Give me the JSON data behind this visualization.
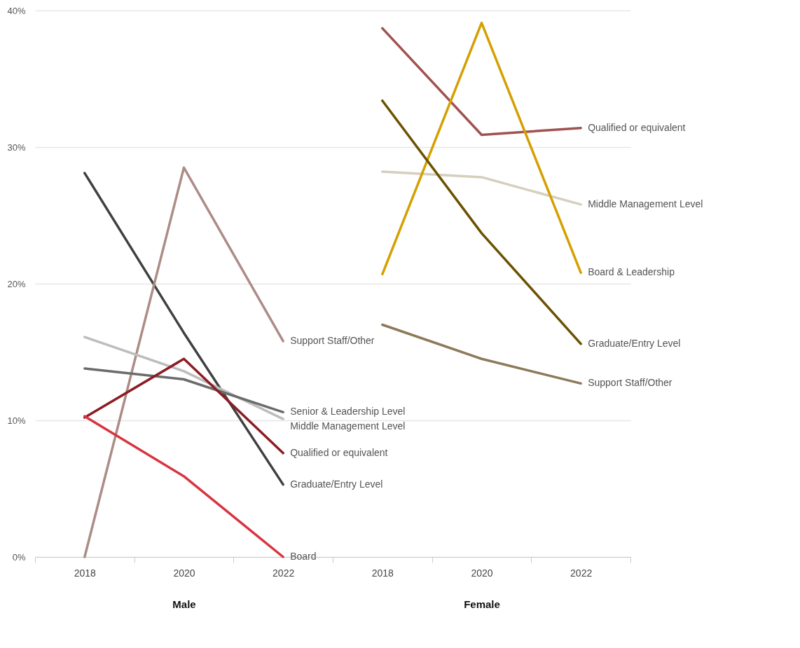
{
  "chart_data": [
    {
      "type": "line",
      "xlabel": "Male",
      "categories": [
        "2018",
        "2020",
        "2022"
      ],
      "ylim": [
        0,
        40
      ],
      "yticks": [
        {
          "value": 0,
          "label": "0%"
        },
        {
          "value": 10,
          "label": "10%"
        },
        {
          "value": 20,
          "label": "20%"
        },
        {
          "value": 30,
          "label": "30%"
        },
        {
          "value": 40,
          "label": "40%"
        }
      ],
      "grid": "y",
      "series": [
        {
          "name": "Graduate/Entry Level",
          "color": "#404040",
          "values": [
            28.1,
            16.4,
            5.3
          ]
        },
        {
          "name": "Support Staff/Other",
          "color": "#ac8c86",
          "values": [
            0,
            28.5,
            15.8
          ]
        },
        {
          "name": "Middle Management Level",
          "color": "#bdbdbd",
          "values": [
            16.1,
            13.6,
            10.1
          ]
        },
        {
          "name": "Senior & Leadership Level",
          "color": "#6b6b6b",
          "values": [
            13.8,
            13.0,
            10.6
          ]
        },
        {
          "name": "Qualified or equivalent",
          "color": "#8b1c24",
          "values": [
            10.2,
            14.5,
            7.6
          ]
        },
        {
          "name": "Board",
          "color": "#d93340",
          "values": [
            10.3,
            5.9,
            0
          ]
        }
      ]
    },
    {
      "type": "line",
      "xlabel": "Female",
      "categories": [
        "2018",
        "2020",
        "2022"
      ],
      "ylim": [
        0,
        40
      ],
      "yticks": [
        0,
        10,
        20,
        30,
        40
      ],
      "grid": "y",
      "tick_labels": "x",
      "series": [
        {
          "name": "Qualified or equivalent",
          "color": "#a0524f",
          "values": [
            38.7,
            30.9,
            31.4
          ]
        },
        {
          "name": "Middle Management Level",
          "color": "#d6cfbd",
          "values": [
            28.2,
            27.8,
            25.8
          ]
        },
        {
          "name": "Board & Leadership",
          "color": "#d4a000",
          "values": [
            20.7,
            39.1,
            20.8
          ]
        },
        {
          "name": "Graduate/Entry Level",
          "color": "#6b5200",
          "values": [
            33.4,
            23.7,
            15.6
          ]
        },
        {
          "name": "Support Staff/Other",
          "color": "#8c7a58",
          "values": [
            17.0,
            14.5,
            12.7
          ]
        }
      ]
    }
  ]
}
